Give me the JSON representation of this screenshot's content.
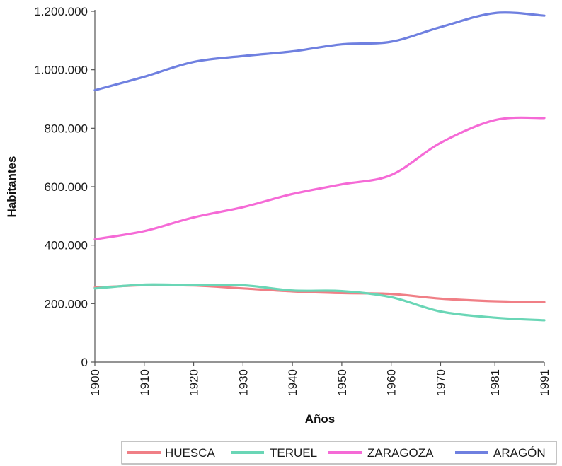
{
  "chart_data": {
    "type": "line",
    "title": "",
    "xlabel": "Años",
    "ylabel": "Habitantes",
    "x": [
      "1900",
      "1910",
      "1920",
      "1930",
      "1940",
      "1950",
      "1960",
      "1970",
      "1981",
      "1991"
    ],
    "x_numeric": [
      1900,
      1910,
      1920,
      1930,
      1940,
      1950,
      1960,
      1970,
      1981,
      1991
    ],
    "ylim": [
      0,
      1200000
    ],
    "yticks": [
      0,
      200000,
      400000,
      600000,
      800000,
      1000000,
      1200000
    ],
    "yticklabels": [
      "0",
      "200.000",
      "400.000",
      "600.000",
      "800.000",
      "1.000.000",
      "1.200.000"
    ],
    "grid": false,
    "legend_position": "bottom-right",
    "series": [
      {
        "name": "HUESCA",
        "color": "#f07f86",
        "values": [
          255000,
          263000,
          262000,
          252000,
          242000,
          236000,
          233000,
          217000,
          208000,
          205000
        ]
      },
      {
        "name": "TERUEL",
        "color": "#6ad6b6",
        "values": [
          252000,
          265000,
          263000,
          263000,
          245000,
          243000,
          222000,
          173000,
          152000,
          143000
        ]
      },
      {
        "name": "ZARAGOZA",
        "color": "#f56ad6",
        "values": [
          420000,
          448000,
          495000,
          530000,
          575000,
          608000,
          640000,
          750000,
          828000,
          835000
        ]
      },
      {
        "name": "ARAGÓN",
        "color": "#6f80e0",
        "values": [
          930000,
          976000,
          1027000,
          1047000,
          1063000,
          1087000,
          1096000,
          1146000,
          1194000,
          1185000
        ]
      }
    ]
  }
}
